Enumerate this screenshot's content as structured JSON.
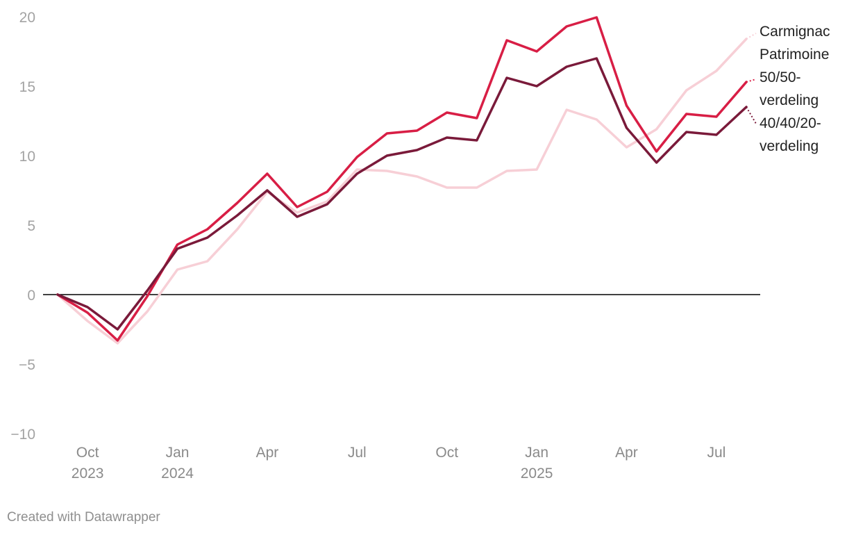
{
  "chart_data": {
    "type": "line",
    "x": [
      "2023-09",
      "2023-10",
      "2023-11",
      "2023-12",
      "2024-01",
      "2024-02",
      "2024-03",
      "2024-04",
      "2024-05",
      "2024-06",
      "2024-07",
      "2024-08",
      "2024-09",
      "2024-10",
      "2024-11",
      "2024-12",
      "2025-01",
      "2025-02",
      "2025-03",
      "2025-04",
      "2025-05",
      "2025-06",
      "2025-07",
      "2025-08"
    ],
    "series": [
      {
        "name": "Carmignac Patrimoine",
        "label_lines": [
          "Carmignac",
          "Patrimoine"
        ],
        "color": "#f7cfd6",
        "values": [
          0,
          -1.9,
          -3.5,
          -1.2,
          1.8,
          2.4,
          4.7,
          7.4,
          5.9,
          6.7,
          9.0,
          8.9,
          8.5,
          7.7,
          7.7,
          8.9,
          9.0,
          13.3,
          12.6,
          10.6,
          11.9,
          14.7,
          16.1,
          18.4
        ]
      },
      {
        "name": "50/50-verdeling",
        "label_lines": [
          "50/50-",
          "verdeling"
        ],
        "color": "#d81e45",
        "values": [
          0,
          -1.3,
          -3.3,
          -0.1,
          3.6,
          4.7,
          6.6,
          8.7,
          6.3,
          7.4,
          9.9,
          11.6,
          11.8,
          13.1,
          12.7,
          18.3,
          17.5,
          19.3,
          19.95,
          13.6,
          10.3,
          13.0,
          12.8,
          15.3
        ]
      },
      {
        "name": "40/40/20-verdeling",
        "label_lines": [
          "40/40/20-",
          "verdeling"
        ],
        "color": "#7a1a3a",
        "values": [
          0,
          -0.9,
          -2.5,
          0.3,
          3.3,
          4.1,
          5.7,
          7.5,
          5.6,
          6.5,
          8.7,
          10.0,
          10.4,
          11.3,
          11.1,
          15.6,
          15.0,
          16.4,
          17.0,
          12.0,
          9.5,
          11.7,
          11.5,
          13.5
        ]
      }
    ],
    "ylim": [
      -10,
      20
    ],
    "yticks": [
      {
        "value": 20,
        "label": "20"
      },
      {
        "value": 15,
        "label": "15"
      },
      {
        "value": 10,
        "label": "10"
      },
      {
        "value": 5,
        "label": "5"
      },
      {
        "value": 0,
        "label": "0"
      },
      {
        "value": -5,
        "label": "−5"
      },
      {
        "value": -10,
        "label": "−10"
      }
    ],
    "xticks": [
      {
        "x": "2023-10",
        "label": "Oct",
        "label2": "2023"
      },
      {
        "x": "2024-01",
        "label": "Jan",
        "label2": "2024"
      },
      {
        "x": "2024-04",
        "label": "Apr",
        "label2": ""
      },
      {
        "x": "2024-07",
        "label": "Jul",
        "label2": ""
      },
      {
        "x": "2024-10",
        "label": "Oct",
        "label2": ""
      },
      {
        "x": "2025-01",
        "label": "Jan",
        "label2": "2025"
      },
      {
        "x": "2025-04",
        "label": "Apr",
        "label2": ""
      },
      {
        "x": "2025-07",
        "label": "Jul",
        "label2": ""
      }
    ],
    "zero_line_color": "#000000",
    "grid": false,
    "legend": "direct labels at right"
  },
  "footer": {
    "credit": "Created with Datawrapper"
  }
}
